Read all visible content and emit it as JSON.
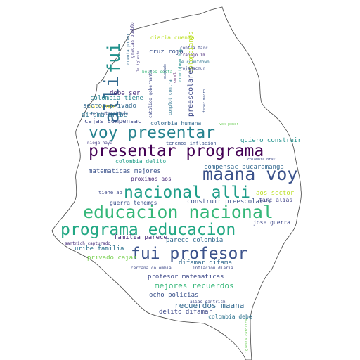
{
  "words": [
    {
      "text": "diaria cuenta",
      "color": "#bddf26"
    },
    {
      "text": "cruz roja",
      "color": "#3b528b"
    },
    {
      "text": "cuenta ponen",
      "color": "#31688e"
    },
    {
      "text": "gracias pueblo",
      "color": "#443a83"
    },
    {
      "text": "contra farc",
      "color": "#3e4989"
    },
    {
      "text": "trabajo im",
      "color": "#482878"
    },
    {
      "text": "e countdown",
      "color": "#2c728e"
    },
    {
      "text": "roja acnur",
      "color": "#3e4989"
    },
    {
      "text": "beltos costa",
      "color": "#35b779"
    },
    {
      "text": "la iglesia",
      "color": "#443a83"
    },
    {
      "text": "fui",
      "color": "#21918c"
    },
    {
      "text": "alli",
      "color": "#31688e"
    },
    {
      "text": "colombianos",
      "color": "#bddf26"
    },
    {
      "text": "quedado",
      "color": "#3b528b"
    },
    {
      "text": "canal",
      "color": "#440154"
    },
    {
      "text": "countdown hoy",
      "color": "#21918c"
    },
    {
      "text": "colombia tiene",
      "color": "#26828e"
    },
    {
      "text": "narco farc",
      "color": "#fde725"
    },
    {
      "text": "debe ser",
      "color": "#472d7b"
    },
    {
      "text": "ser extraditado",
      "color": "#3b528b"
    },
    {
      "text": "preescolares",
      "color": "#3e4989"
    },
    {
      "text": "sector privado",
      "color": "#31688e"
    },
    {
      "text": "catolico gobernante",
      "color": "#3e4989"
    },
    {
      "text": "complot contra",
      "color": "#2c728e"
    },
    {
      "text": "tener macro",
      "color": "#3b528b"
    },
    {
      "text": "difama uribe",
      "color": "#2c728e"
    },
    {
      "text": "cajas compensac",
      "color": "#3e4989"
    },
    {
      "text": "colombia humana",
      "color": "#31688e"
    },
    {
      "text": "vox poner",
      "color": "#6ece58"
    },
    {
      "text": "voy presentar",
      "color": "#26828e"
    },
    {
      "text": "tenemos inflacion",
      "color": "#3b528b"
    },
    {
      "text": "quiero construir",
      "color": "#21918c"
    },
    {
      "text": "niega haya",
      "color": "#443a83"
    },
    {
      "text": "presentar programa",
      "color": "#440154"
    },
    {
      "text": "colombia delito",
      "color": "#1f9e89"
    },
    {
      "text": "colombia brasil",
      "color": "#3e4989"
    },
    {
      "text": "matematicas mejores",
      "color": "#3b528b"
    },
    {
      "text": "maana voy",
      "color": "#3b528b"
    },
    {
      "text": "compensac bucaramanga",
      "color": "#31688e"
    },
    {
      "text": "proximos aos",
      "color": "#482878"
    },
    {
      "text": "nacional alli",
      "color": "#1f9e89"
    },
    {
      "text": "aos sector",
      "color": "#bddf26"
    },
    {
      "text": "tiene ao",
      "color": "#3e4989"
    },
    {
      "text": "educacion nacional",
      "color": "#35b779"
    },
    {
      "text": "construir preescolares",
      "color": "#3b528b"
    },
    {
      "text": "farc alias",
      "color": "#414487"
    },
    {
      "text": "guerra tenemos",
      "color": "#3b528b"
    },
    {
      "text": "programa educacion",
      "color": "#22a884"
    },
    {
      "text": "jose guerra",
      "color": "#3e4989"
    },
    {
      "text": "familia parece",
      "color": "#482878"
    },
    {
      "text": "parece colombia",
      "color": "#31688e"
    },
    {
      "text": "fui profesor",
      "color": "#3b528b"
    },
    {
      "text": "uribe familia",
      "color": "#2c728e"
    },
    {
      "text": "privado cajas",
      "color": "#7ad151"
    },
    {
      "text": "difamar difama",
      "color": "#31688e"
    },
    {
      "text": "inflacion diaria",
      "color": "#3e4989"
    },
    {
      "text": "cercana colombia",
      "color": "#3e4989"
    },
    {
      "text": "profesor matematicas",
      "color": "#3e4989"
    },
    {
      "text": "mejores recuerdos",
      "color": "#35b779"
    },
    {
      "text": "ocho policias",
      "color": "#3b528b"
    },
    {
      "text": "recuerdos maana",
      "color": "#31688e"
    },
    {
      "text": "delito difamar",
      "color": "#3e4989"
    },
    {
      "text": "colombia debe",
      "color": "#2c728e"
    },
    {
      "text": "alias santrich",
      "color": "#3e4989"
    },
    {
      "text": "santrich capturado",
      "color": "#472d7b"
    },
    {
      "text": "iglesia catolica",
      "color": "#6ece58"
    }
  ]
}
